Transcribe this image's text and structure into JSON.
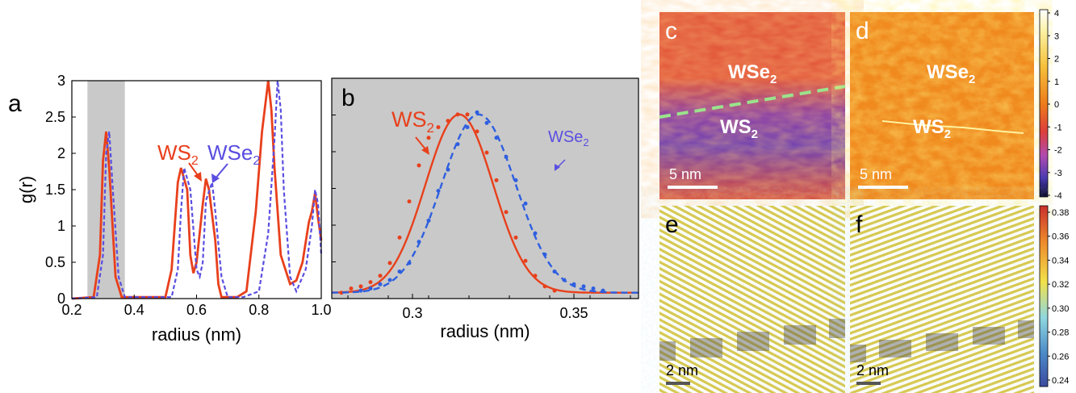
{
  "panels": {
    "a": "a",
    "b": "b",
    "c": "c",
    "d": "d",
    "e": "e",
    "f": "f"
  },
  "colors": {
    "ws2": "#e8401c",
    "wse2": "#5a4ee0",
    "shade": "#c9c9c9",
    "boundary": "#9be38c"
  },
  "chart_data": [
    {
      "panel": "a",
      "type": "line",
      "xlabel": "radius (nm)",
      "ylabel": "g(r)",
      "xlim": [
        0.2,
        1.0
      ],
      "ylim": [
        0,
        3
      ],
      "xticks": [
        "0.2",
        "0.4",
        "0.6",
        "0.8",
        "1.0"
      ],
      "yticks": [
        "0",
        "0.5",
        "1",
        "1.5",
        "2",
        "2.5",
        "3"
      ],
      "shaded_region": [
        0.25,
        0.37
      ],
      "annotations": [
        {
          "text": "WS",
          "sub": "2",
          "series": "WS2"
        },
        {
          "text": "WSe",
          "sub": "2",
          "series": "WSe2"
        }
      ],
      "series": [
        {
          "name": "WS2",
          "style": "solid",
          "x": [
            0.2,
            0.27,
            0.29,
            0.3,
            0.31,
            0.32,
            0.34,
            0.36,
            0.5,
            0.52,
            0.54,
            0.55,
            0.57,
            0.58,
            0.59,
            0.6,
            0.62,
            0.63,
            0.64,
            0.66,
            0.67,
            0.68,
            0.73,
            0.76,
            0.79,
            0.81,
            0.83,
            0.84,
            0.85,
            0.87,
            0.9,
            0.92,
            0.94,
            0.96,
            0.97,
            0.98,
            0.99,
            1.0
          ],
          "y": [
            0,
            0.02,
            0.6,
            1.9,
            2.3,
            1.8,
            0.3,
            0.02,
            0.02,
            0.4,
            1.6,
            1.8,
            1.5,
            0.6,
            0.35,
            0.5,
            1.3,
            1.65,
            1.5,
            0.8,
            0.2,
            0.02,
            0.02,
            0.1,
            1.2,
            2.3,
            3.0,
            2.6,
            1.8,
            0.6,
            0.2,
            0.25,
            0.5,
            1.05,
            1.2,
            1.45,
            1.1,
            0.8
          ]
        },
        {
          "name": "WSe2",
          "style": "dashed",
          "x": [
            0.2,
            0.28,
            0.3,
            0.31,
            0.32,
            0.33,
            0.35,
            0.37,
            0.52,
            0.54,
            0.55,
            0.56,
            0.58,
            0.6,
            0.61,
            0.62,
            0.63,
            0.65,
            0.66,
            0.68,
            0.7,
            0.75,
            0.8,
            0.83,
            0.85,
            0.86,
            0.87,
            0.88,
            0.9,
            0.92,
            0.95,
            0.97,
            0.98,
            0.99,
            1.0
          ],
          "y": [
            0,
            0.02,
            0.6,
            2.0,
            2.3,
            1.6,
            0.3,
            0.02,
            0.02,
            0.4,
            1.2,
            1.8,
            1.5,
            0.4,
            0.3,
            0.5,
            1.35,
            1.6,
            1.2,
            0.3,
            0.02,
            0.02,
            0.1,
            0.9,
            2.2,
            3.0,
            2.6,
            1.5,
            0.3,
            0.1,
            0.4,
            1.0,
            1.5,
            1.3,
            0.6
          ]
        }
      ]
    },
    {
      "panel": "b",
      "type": "scatter",
      "xlabel": "radius (nm)",
      "xlim": [
        0.275,
        0.37
      ],
      "ylim": [
        0,
        1
      ],
      "xticks": [
        "0.3",
        "0.35"
      ],
      "annotations": [
        {
          "text": "WS",
          "sub": "2",
          "series": "WS2"
        },
        {
          "text": "WSe",
          "sub": "2",
          "series": "WSe2"
        }
      ],
      "series": [
        {
          "name": "WS2",
          "style": "solid",
          "fit_center": 0.3145,
          "fit_sigma": 0.0105,
          "fit_amp": 0.84,
          "x": [
            0.278,
            0.281,
            0.284,
            0.287,
            0.29,
            0.293,
            0.296,
            0.299,
            0.302,
            0.305,
            0.308,
            0.311,
            0.314,
            0.317,
            0.32,
            0.323,
            0.326,
            0.329,
            0.332,
            0.335,
            0.338,
            0.341,
            0.344
          ],
          "y": [
            0.02,
            0.04,
            0.05,
            0.07,
            0.1,
            0.16,
            0.28,
            0.45,
            0.62,
            0.75,
            0.8,
            0.83,
            0.86,
            0.86,
            0.78,
            0.68,
            0.55,
            0.4,
            0.28,
            0.17,
            0.1,
            0.05,
            0.03
          ]
        },
        {
          "name": "WSe2",
          "style": "dashed",
          "fit_center": 0.3205,
          "fit_sigma": 0.0115,
          "fit_amp": 0.84,
          "x": [
            0.284,
            0.287,
            0.29,
            0.293,
            0.296,
            0.299,
            0.302,
            0.305,
            0.308,
            0.311,
            0.314,
            0.317,
            0.32,
            0.323,
            0.326,
            0.329,
            0.332,
            0.335,
            0.338,
            0.341,
            0.344,
            0.347,
            0.35,
            0.353,
            0.356,
            0.359
          ],
          "y": [
            0.03,
            0.04,
            0.06,
            0.08,
            0.12,
            0.16,
            0.26,
            0.36,
            0.5,
            0.6,
            0.72,
            0.8,
            0.87,
            0.82,
            0.75,
            0.66,
            0.55,
            0.44,
            0.3,
            0.2,
            0.12,
            0.08,
            0.06,
            0.05,
            0.04,
            0.03
          ]
        }
      ]
    }
  ],
  "maps": {
    "c": {
      "top_label": "WSe",
      "bottom_label": "WS",
      "sub": "2",
      "scale": "5 nm"
    },
    "d": {
      "top_label": "WSe",
      "bottom_label": "WS",
      "sub": "2",
      "scale": "5 nm"
    },
    "e": {
      "scale": "2 nm"
    },
    "f": {
      "scale": "2 nm"
    }
  },
  "colorbars": {
    "top": {
      "ticks": [
        "4",
        "3",
        "2",
        "1",
        "0",
        "-1",
        "-2",
        "-3",
        "-4"
      ]
    },
    "bottom": {
      "ticks": [
        "0.38",
        "0.36",
        "0.34",
        "0.32",
        "0.30",
        "0.28",
        "0.26",
        "0.24"
      ]
    }
  }
}
